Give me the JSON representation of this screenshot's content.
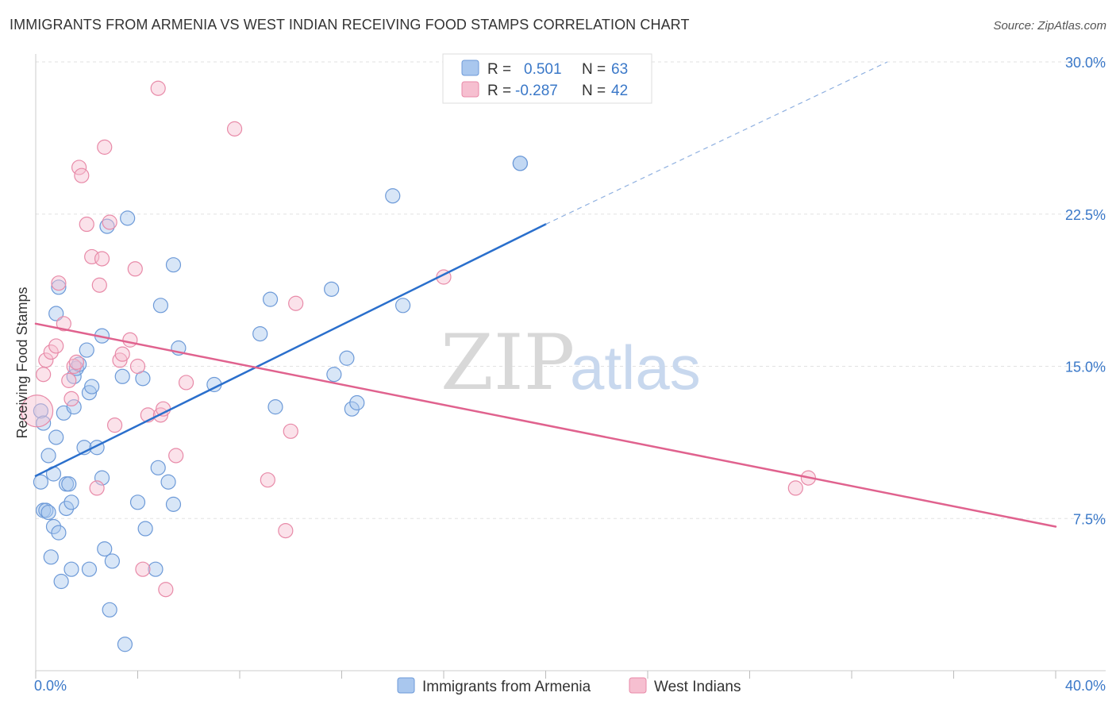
{
  "header": {
    "title": "IMMIGRANTS FROM ARMENIA VS WEST INDIAN RECEIVING FOOD STAMPS CORRELATION CHART",
    "source": "Source: ZipAtlas.com"
  },
  "watermark": {
    "zip": "ZIP",
    "atlas": "atlas"
  },
  "chart_data": {
    "type": "scatter",
    "title": "IMMIGRANTS FROM ARMENIA VS WEST INDIAN RECEIVING FOOD STAMPS CORRELATION CHART",
    "xlabel": "",
    "ylabel": "Receiving Food Stamps",
    "xlim": [
      0,
      40
    ],
    "ylim": [
      0,
      30
    ],
    "x_tick_labels": [
      "0.0%",
      "40.0%"
    ],
    "y_ticks": [
      {
        "value": 7.5,
        "label": "7.5%"
      },
      {
        "value": 15,
        "label": "15.0%"
      },
      {
        "value": 22.5,
        "label": "22.5%"
      },
      {
        "value": 30,
        "label": "30.0%"
      }
    ],
    "grid": true,
    "legend_position": "top-center",
    "stats": [
      {
        "r_label": "R =",
        "r": "0.501",
        "n_label": "N =",
        "n": "63"
      },
      {
        "r_label": "R =",
        "r": "-0.287",
        "n_label": "N =",
        "n": "42"
      }
    ],
    "series": [
      {
        "name": "Immigrants from Armenia",
        "color": "#a9c7ee",
        "stroke": "#6d9ad8",
        "trend_color": "#2a6fcc",
        "trend": {
          "x0": 0,
          "y0": 9.6,
          "x1": 20,
          "y1": 22.0,
          "dash_to_x": 33.4,
          "dash_to_y": 30.0
        },
        "points": [
          [
            0.2,
            12.8
          ],
          [
            0.3,
            12.2
          ],
          [
            0.2,
            9.3
          ],
          [
            0.3,
            7.9
          ],
          [
            0.4,
            7.9
          ],
          [
            0.5,
            7.8
          ],
          [
            0.5,
            10.6
          ],
          [
            0.6,
            5.6
          ],
          [
            0.7,
            7.1
          ],
          [
            0.7,
            9.7
          ],
          [
            0.8,
            11.5
          ],
          [
            0.8,
            17.6
          ],
          [
            0.9,
            6.8
          ],
          [
            0.9,
            18.9
          ],
          [
            1.0,
            4.4
          ],
          [
            1.1,
            12.7
          ],
          [
            1.2,
            9.2
          ],
          [
            1.2,
            8.0
          ],
          [
            1.3,
            9.2
          ],
          [
            1.4,
            8.3
          ],
          [
            1.4,
            5.0
          ],
          [
            1.5,
            14.5
          ],
          [
            1.5,
            13.0
          ],
          [
            1.6,
            14.9
          ],
          [
            1.7,
            15.1
          ],
          [
            1.9,
            11.0
          ],
          [
            2.0,
            15.8
          ],
          [
            2.1,
            5.0
          ],
          [
            2.1,
            13.7
          ],
          [
            2.2,
            14.0
          ],
          [
            2.4,
            11.0
          ],
          [
            2.6,
            9.5
          ],
          [
            2.6,
            16.5
          ],
          [
            2.7,
            6.0
          ],
          [
            2.8,
            21.9
          ],
          [
            2.9,
            3.0
          ],
          [
            3.0,
            5.4
          ],
          [
            3.4,
            14.5
          ],
          [
            3.5,
            1.3
          ],
          [
            3.6,
            22.3
          ],
          [
            4.0,
            8.3
          ],
          [
            4.2,
            14.4
          ],
          [
            4.3,
            7.0
          ],
          [
            4.7,
            5.0
          ],
          [
            4.8,
            10.0
          ],
          [
            4.9,
            18.0
          ],
          [
            5.2,
            9.3
          ],
          [
            5.4,
            8.2
          ],
          [
            5.4,
            20.0
          ],
          [
            5.6,
            15.9
          ],
          [
            7.0,
            14.1
          ],
          [
            8.8,
            16.6
          ],
          [
            9.2,
            18.3
          ],
          [
            9.4,
            13.0
          ],
          [
            11.6,
            18.8
          ],
          [
            11.7,
            14.6
          ],
          [
            12.2,
            15.4
          ],
          [
            12.4,
            12.9
          ],
          [
            12.6,
            13.2
          ],
          [
            14.0,
            23.4
          ],
          [
            14.4,
            18.0
          ],
          [
            19.0,
            25.0
          ],
          [
            19.0,
            25.0
          ]
        ]
      },
      {
        "name": "West Indians",
        "color": "#f6bfd0",
        "stroke": "#e88aa8",
        "trend_color": "#e0628e",
        "trend": {
          "x0": 0,
          "y0": 17.1,
          "x1": 40,
          "y1": 7.1
        },
        "points": [
          [
            0.05,
            12.8
          ],
          [
            0.3,
            14.6
          ],
          [
            0.4,
            15.3
          ],
          [
            0.6,
            15.7
          ],
          [
            0.8,
            16.0
          ],
          [
            0.9,
            19.1
          ],
          [
            1.1,
            17.1
          ],
          [
            1.3,
            14.3
          ],
          [
            1.4,
            13.4
          ],
          [
            1.5,
            15.0
          ],
          [
            1.6,
            15.2
          ],
          [
            1.7,
            24.8
          ],
          [
            1.8,
            24.4
          ],
          [
            2.0,
            22.0
          ],
          [
            2.2,
            20.4
          ],
          [
            2.4,
            9.0
          ],
          [
            2.5,
            19.0
          ],
          [
            2.6,
            20.3
          ],
          [
            2.7,
            25.8
          ],
          [
            2.9,
            22.1
          ],
          [
            3.1,
            12.1
          ],
          [
            3.3,
            15.3
          ],
          [
            3.4,
            15.6
          ],
          [
            3.7,
            16.3
          ],
          [
            3.9,
            19.8
          ],
          [
            4.0,
            15.0
          ],
          [
            4.2,
            5.0
          ],
          [
            4.4,
            12.6
          ],
          [
            4.8,
            28.7
          ],
          [
            4.9,
            12.6
          ],
          [
            5.0,
            12.9
          ],
          [
            5.1,
            4.0
          ],
          [
            5.5,
            10.6
          ],
          [
            5.9,
            14.2
          ],
          [
            7.8,
            26.7
          ],
          [
            9.1,
            9.4
          ],
          [
            9.8,
            6.9
          ],
          [
            10.0,
            11.8
          ],
          [
            10.2,
            18.1
          ],
          [
            16.0,
            19.4
          ],
          [
            29.8,
            9.0
          ],
          [
            30.3,
            9.5
          ]
        ]
      }
    ]
  }
}
